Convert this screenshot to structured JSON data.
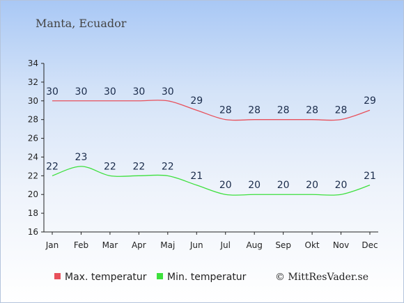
{
  "chart_data": {
    "type": "line",
    "title": "Manta, Ecuador",
    "categories": [
      "Jan",
      "Feb",
      "Mar",
      "Apr",
      "Maj",
      "Jun",
      "Jul",
      "Aug",
      "Sep",
      "Okt",
      "Nov",
      "Dec"
    ],
    "series": [
      {
        "name": "Max. temperatur",
        "color": "#e8505b",
        "values": [
          30,
          30,
          30,
          30,
          30,
          29,
          28,
          28,
          28,
          28,
          28,
          29
        ]
      },
      {
        "name": "Min. temperatur",
        "color": "#3de03d",
        "values": [
          22,
          23,
          22,
          22,
          22,
          21,
          20,
          20,
          20,
          20,
          20,
          21
        ]
      }
    ],
    "yticks": [
      16,
      18,
      20,
      22,
      24,
      26,
      28,
      30,
      32,
      34
    ],
    "ylim": [
      16,
      34
    ],
    "grid": false,
    "legend_position": "bottom-left"
  },
  "credit": "© MittResVader.se"
}
